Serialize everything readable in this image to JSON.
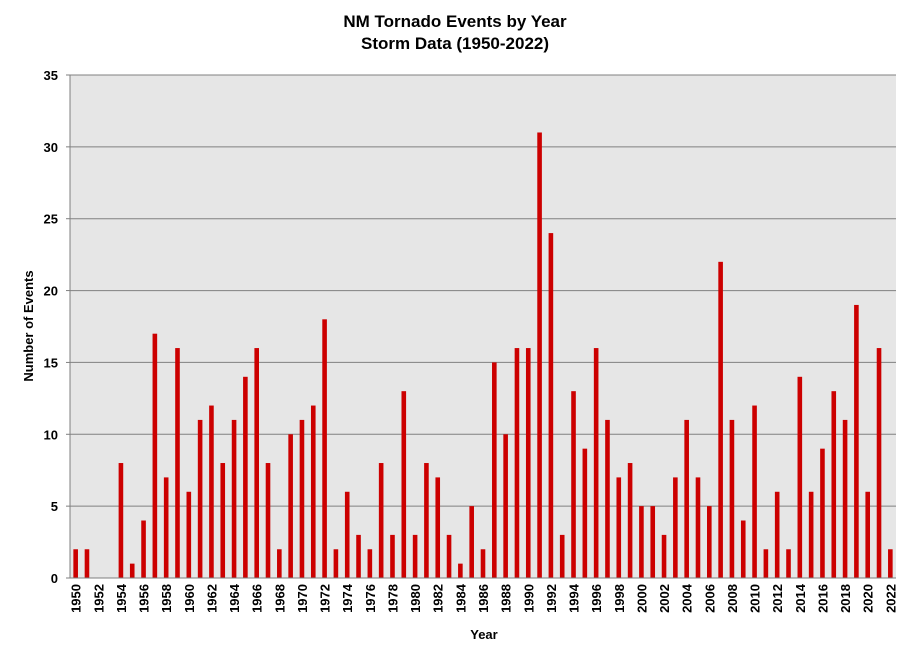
{
  "chart_data": {
    "type": "bar",
    "title": "NM Tornado Events by Year",
    "subtitle": "Storm Data (1950-2022)",
    "xlabel": "Year",
    "ylabel": "Number of Events",
    "ylim": [
      0,
      35
    ],
    "yticks": [
      0,
      5,
      10,
      15,
      20,
      25,
      30,
      35
    ],
    "xtick_labels": [
      "1950",
      "1952",
      "1954",
      "1956",
      "1958",
      "1960",
      "1962",
      "1964",
      "1966",
      "1968",
      "1970",
      "1972",
      "1974",
      "1976",
      "1978",
      "1980",
      "1982",
      "1984",
      "1986",
      "1988",
      "1990",
      "1992",
      "1994",
      "1996",
      "1998",
      "2000",
      "2002",
      "2004",
      "2006",
      "2008",
      "2010",
      "2012",
      "2014",
      "2016",
      "2018",
      "2020",
      "2022"
    ],
    "grid": true,
    "legend": "none",
    "bar_color": "#CC0000",
    "plot_background": "#E6E6E6",
    "categories": [
      1950,
      1951,
      1952,
      1953,
      1954,
      1955,
      1956,
      1957,
      1958,
      1959,
      1960,
      1961,
      1962,
      1963,
      1964,
      1965,
      1966,
      1967,
      1968,
      1969,
      1970,
      1971,
      1972,
      1973,
      1974,
      1975,
      1976,
      1977,
      1978,
      1979,
      1980,
      1981,
      1982,
      1983,
      1984,
      1985,
      1986,
      1987,
      1988,
      1989,
      1990,
      1991,
      1992,
      1993,
      1994,
      1995,
      1996,
      1997,
      1998,
      1999,
      2000,
      2001,
      2002,
      2003,
      2004,
      2005,
      2006,
      2007,
      2008,
      2009,
      2010,
      2011,
      2012,
      2013,
      2014,
      2015,
      2016,
      2017,
      2018,
      2019,
      2020,
      2021,
      2022
    ],
    "values": [
      2,
      2,
      0,
      0,
      8,
      1,
      4,
      17,
      7,
      16,
      6,
      11,
      12,
      8,
      11,
      14,
      16,
      8,
      2,
      10,
      11,
      12,
      18,
      2,
      6,
      3,
      2,
      8,
      3,
      13,
      3,
      8,
      7,
      3,
      1,
      5,
      2,
      15,
      10,
      16,
      16,
      31,
      24,
      3,
      13,
      9,
      16,
      11,
      7,
      8,
      5,
      5,
      3,
      7,
      11,
      7,
      5,
      22,
      11,
      4,
      12,
      2,
      6,
      2,
      14,
      6,
      9,
      13,
      11,
      19,
      6,
      16,
      2
    ]
  }
}
